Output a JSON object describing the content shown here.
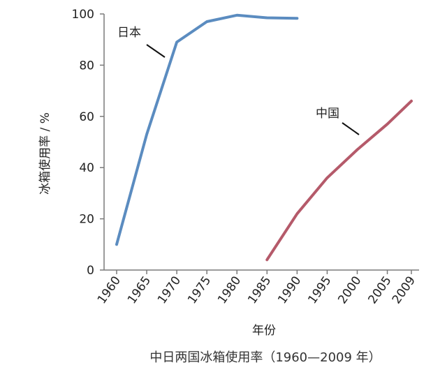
{
  "chart_data": {
    "type": "line",
    "title": "中日两国冰箱使用率（1960—2009 年）",
    "xlabel": "年份",
    "ylabel": "冰箱使用率 / %",
    "xlim": [
      1960,
      2009
    ],
    "ylim": [
      0,
      100
    ],
    "x_ticks": [
      "1960",
      "1965",
      "1970",
      "1975",
      "1980",
      "1985",
      "1990",
      "1995",
      "2000",
      "2005",
      "2009"
    ],
    "y_ticks": [
      "0",
      "20",
      "40",
      "60",
      "80",
      "100"
    ],
    "grid": false,
    "series": [
      {
        "name": "日本",
        "color": "#5b8cc0",
        "x": [
          1960,
          1965,
          1970,
          1975,
          1980,
          1985,
          1990
        ],
        "y": [
          10,
          53,
          89,
          97,
          99.5,
          98.5,
          98.3
        ]
      },
      {
        "name": "中国",
        "color": "#b55a6a",
        "x": [
          1985,
          1990,
          1995,
          2000,
          2005,
          2009
        ],
        "y": [
          4,
          22,
          36,
          47,
          57,
          66
        ]
      }
    ]
  }
}
